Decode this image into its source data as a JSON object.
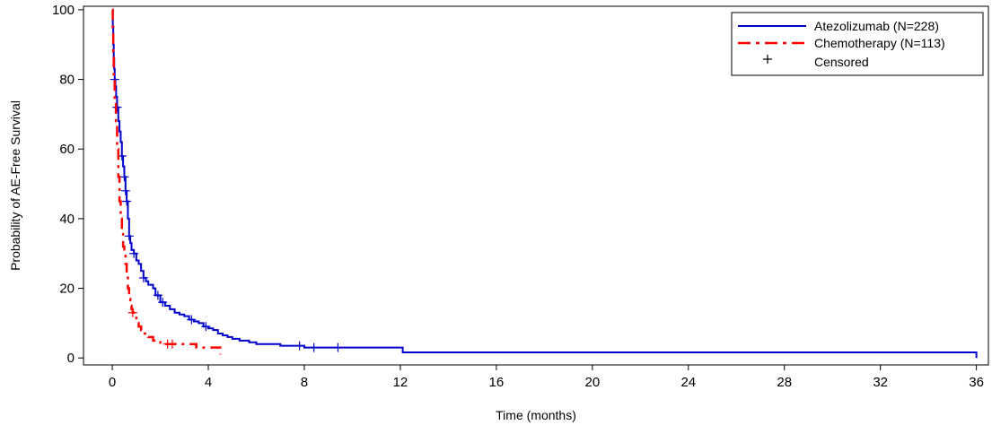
{
  "chart_data": {
    "type": "line",
    "subtype": "kaplan-meier",
    "title": "",
    "xlabel": "Time (months)",
    "ylabel": "Probability of AE-Free Survival",
    "xlim": [
      -1.2,
      36.5
    ],
    "ylim": [
      -2,
      101
    ],
    "xticks": [
      0,
      4,
      8,
      12,
      16,
      20,
      24,
      28,
      32,
      36
    ],
    "yticks": [
      0,
      20,
      40,
      60,
      80,
      100
    ],
    "grid": false,
    "legend_position": "top-right",
    "legend": [
      {
        "label": "Atezolizumab (N=228)",
        "style": "solid",
        "color": "#0000cc"
      },
      {
        "label": "Chemotherapy (N=113)",
        "style": "dash-dot",
        "color": "#ff0000"
      },
      {
        "label": "Censored",
        "marker": "+"
      }
    ],
    "series": [
      {
        "name": "Atezolizumab (N=228)",
        "color": "#0000cc",
        "dash": "solid",
        "x": [
          0,
          0.02,
          0.04,
          0.06,
          0.08,
          0.1,
          0.13,
          0.16,
          0.2,
          0.25,
          0.3,
          0.35,
          0.4,
          0.45,
          0.5,
          0.55,
          0.6,
          0.65,
          0.7,
          0.75,
          0.8,
          0.9,
          1.0,
          1.1,
          1.2,
          1.3,
          1.4,
          1.5,
          1.6,
          1.7,
          1.8,
          2.0,
          2.2,
          2.4,
          2.6,
          2.8,
          3.0,
          3.2,
          3.4,
          3.6,
          3.8,
          4.0,
          4.2,
          4.4,
          4.6,
          4.8,
          5.0,
          5.3,
          5.7,
          6.0,
          6.5,
          7.0,
          7.6,
          8.0,
          9.0,
          10.5,
          12.0,
          12.1,
          16.0,
          24.0,
          30.0,
          35.9,
          36.0
        ],
        "y": [
          100,
          95,
          90,
          86,
          83,
          80,
          78,
          75,
          72,
          68,
          65,
          62,
          58,
          55,
          52,
          48,
          45,
          40,
          35,
          33,
          31,
          30,
          28,
          27,
          25,
          23,
          22,
          21,
          21,
          20,
          18,
          16,
          15,
          14,
          13,
          12.5,
          12,
          11,
          10.5,
          10,
          9,
          8.5,
          8,
          7,
          6.5,
          6,
          5.5,
          5,
          4.5,
          4,
          4,
          3.5,
          3.5,
          3,
          3,
          3,
          3,
          1.6,
          1.6,
          1.6,
          1.6,
          1.6,
          0
        ],
        "censored_x": [
          0.1,
          0.2,
          0.4,
          0.5,
          0.55,
          0.6,
          0.7,
          0.9,
          1.3,
          1.9,
          2.1,
          3.3,
          3.9,
          7.8,
          8.4,
          9.4
        ]
      },
      {
        "name": "Chemotherapy (N=113)",
        "color": "#ff0000",
        "dash": "dash-dot",
        "x": [
          0,
          0.02,
          0.04,
          0.06,
          0.1,
          0.15,
          0.2,
          0.25,
          0.3,
          0.35,
          0.4,
          0.45,
          0.5,
          0.55,
          0.6,
          0.65,
          0.7,
          0.75,
          0.8,
          0.85,
          0.9,
          1.0,
          1.1,
          1.2,
          1.3,
          1.5,
          1.7,
          2.0,
          2.5,
          3.0,
          3.5,
          4.0,
          4.5
        ],
        "y": [
          100,
          95,
          88,
          80,
          74,
          68,
          60,
          52,
          45,
          40,
          36,
          32,
          30,
          27,
          24,
          20,
          17,
          15,
          14,
          13,
          12,
          10,
          9,
          8,
          7,
          6,
          5,
          4,
          4,
          4,
          3,
          3,
          1
        ],
        "censored_x": [
          0.85,
          2.3,
          2.5
        ]
      }
    ]
  }
}
